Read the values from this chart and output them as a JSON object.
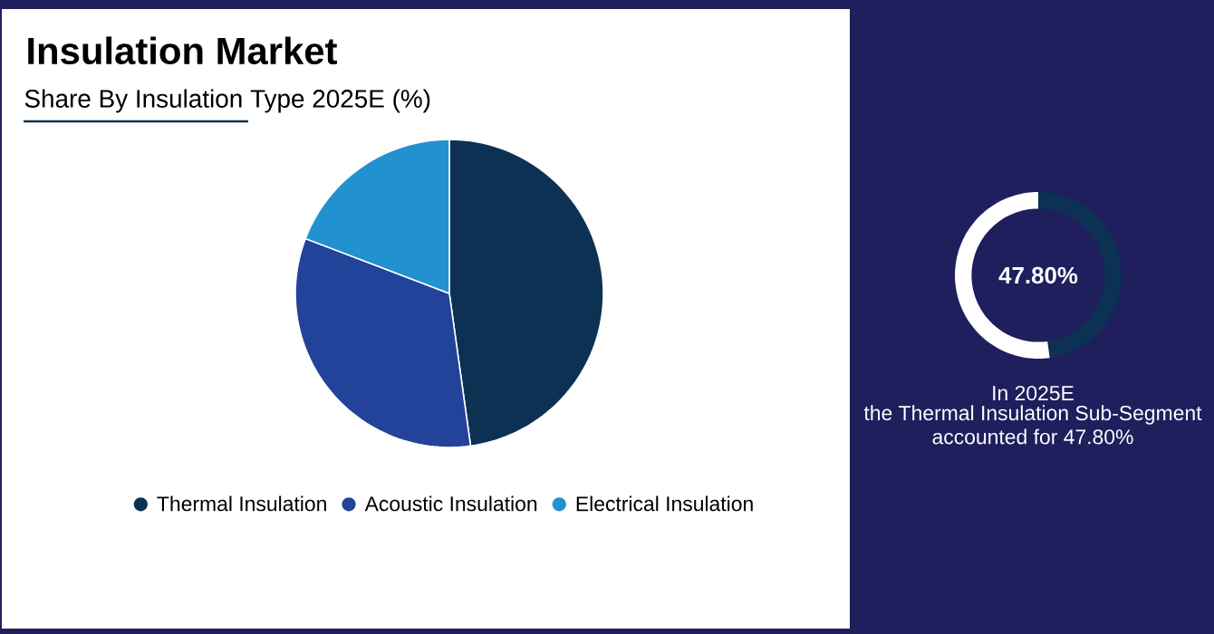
{
  "chart_data": [
    {
      "type": "pie",
      "title": "Insulation Market",
      "subtitle": "Share By Insulation Type 2025E (%)",
      "categories": [
        "Thermal Insulation",
        "Acoustic Insulation",
        "Electrical Insulation"
      ],
      "values": [
        47.8,
        33.0,
        19.2
      ],
      "colors": [
        "#0c3152",
        "#23439a",
        "#2192cf"
      ],
      "legend": "bottom"
    },
    {
      "type": "donut",
      "categories": [
        null,
        null
      ],
      "values": [
        47.8,
        52.2
      ],
      "colors": [
        "#0c3152",
        "#ffffff"
      ],
      "annotations": [
        "47.80%",
        "In 2025E",
        "the Thermal Insulation Sub-Segment",
        "accounted for 47.80%"
      ]
    }
  ]
}
